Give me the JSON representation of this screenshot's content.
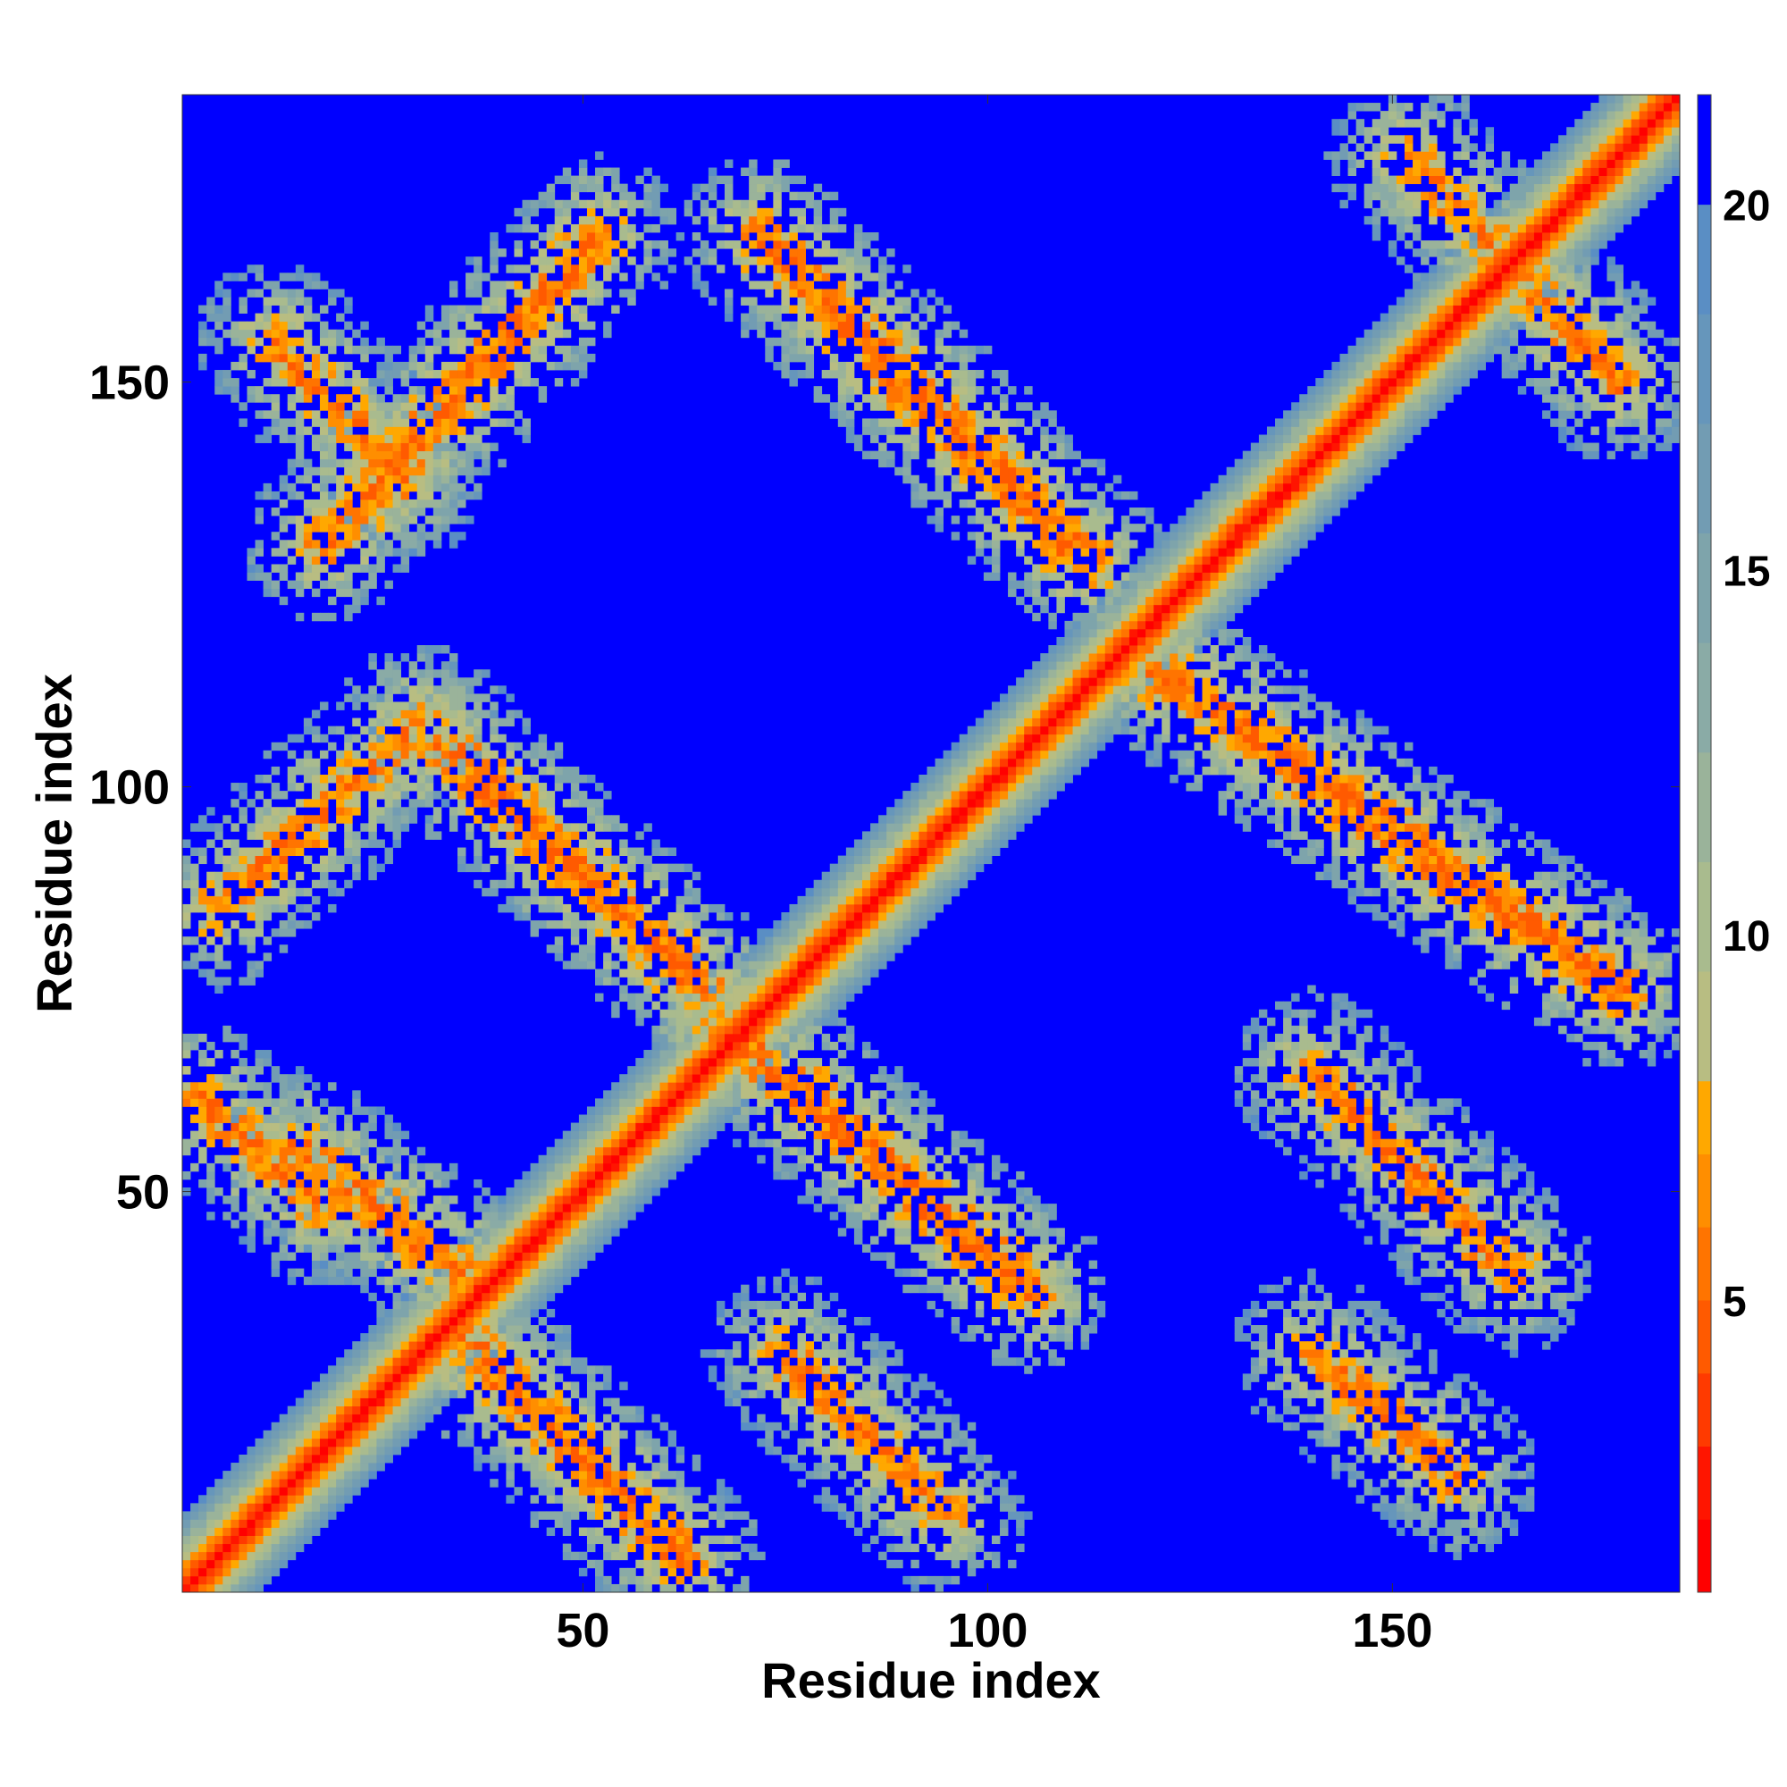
{
  "chart_data": {
    "type": "heatmap",
    "title": "",
    "xlabel": "Residue index",
    "ylabel": "Residue index",
    "xlim": [
      1,
      185
    ],
    "ylim": [
      1,
      185
    ],
    "x_ticks": [
      50,
      100,
      150
    ],
    "x_tick_labels": [
      "50",
      "100",
      "150"
    ],
    "y_ticks": [
      50,
      100,
      150
    ],
    "y_tick_labels": [
      "50",
      "100",
      "150"
    ],
    "colorbar": {
      "range": [
        1,
        21.5
      ],
      "ticks": [
        5,
        10,
        15,
        20
      ],
      "tick_labels": [
        "5",
        "10",
        "15",
        "20"
      ],
      "levels": [
        {
          "from": 1,
          "to": 2,
          "color": "#ff0000"
        },
        {
          "from": 2,
          "to": 3,
          "color": "#ff1500"
        },
        {
          "from": 3,
          "to": 4,
          "color": "#ff3a00"
        },
        {
          "from": 4,
          "to": 5,
          "color": "#ff5a00"
        },
        {
          "from": 5,
          "to": 6,
          "color": "#ff7400"
        },
        {
          "from": 6,
          "to": 7,
          "color": "#ff8e00"
        },
        {
          "from": 7,
          "to": 8,
          "color": "#ffa800"
        },
        {
          "from": 8,
          "to": 9.5,
          "color": "#b8bd82"
        },
        {
          "from": 9.5,
          "to": 11,
          "color": "#a9bb8e"
        },
        {
          "from": 11,
          "to": 12.5,
          "color": "#9ab39a"
        },
        {
          "from": 12.5,
          "to": 14,
          "color": "#8aaba6"
        },
        {
          "from": 14,
          "to": 15.5,
          "color": "#7ea4ab"
        },
        {
          "from": 15.5,
          "to": 17,
          "color": "#729cb3"
        },
        {
          "from": 17,
          "to": 18.5,
          "color": "#6696bb"
        },
        {
          "from": 18.5,
          "to": 20,
          "color": "#5a8ec4"
        },
        {
          "from": 20,
          "to": 21.5,
          "color": "#0000ff"
        }
      ]
    },
    "cell_size": 1,
    "value_cap": 21.5,
    "structure": {
      "diagonal": {
        "from": 1,
        "to": 185
      },
      "bands": [
        {
          "start": [
            18,
            130
          ],
          "end": [
            52,
            168
          ],
          "strength": 0.75
        },
        {
          "start": [
            72,
            168
          ],
          "end": [
            112,
            128
          ],
          "strength": 0.9
        },
        {
          "start": [
            120,
            115
          ],
          "end": [
            178,
            75
          ],
          "strength": 0.85
        },
        {
          "start": [
            140,
            65
          ],
          "end": [
            165,
            40
          ],
          "strength": 0.55
        },
        {
          "start": [
            33,
            105
          ],
          "end": [
            65,
            75
          ],
          "strength": 0.9
        },
        {
          "start": [
            68,
            70
          ],
          "end": [
            105,
            38
          ],
          "strength": 0.9
        },
        {
          "start": [
            15,
            55
          ],
          "end": [
            35,
            40
          ],
          "strength": 0.7
        },
        {
          "start": [
            35,
            32
          ],
          "end": [
            62,
            5
          ],
          "strength": 0.8
        },
        {
          "start": [
            75,
            30
          ],
          "end": [
            95,
            10
          ],
          "strength": 0.5
        },
        {
          "start": [
            5,
            85
          ],
          "end": [
            30,
            108
          ],
          "strength": 0.5
        },
        {
          "start": [
            2,
            62
          ],
          "end": [
            18,
            48
          ],
          "strength": 0.6
        },
        {
          "start": [
            12,
            155
          ],
          "end": [
            28,
            138
          ],
          "strength": 0.5
        },
        {
          "start": [
            140,
            30
          ],
          "end": [
            158,
            15
          ],
          "strength": 0.5
        },
        {
          "start": [
            152,
            178
          ],
          "end": [
            178,
            150
          ],
          "strength": 0.5
        }
      ]
    }
  }
}
